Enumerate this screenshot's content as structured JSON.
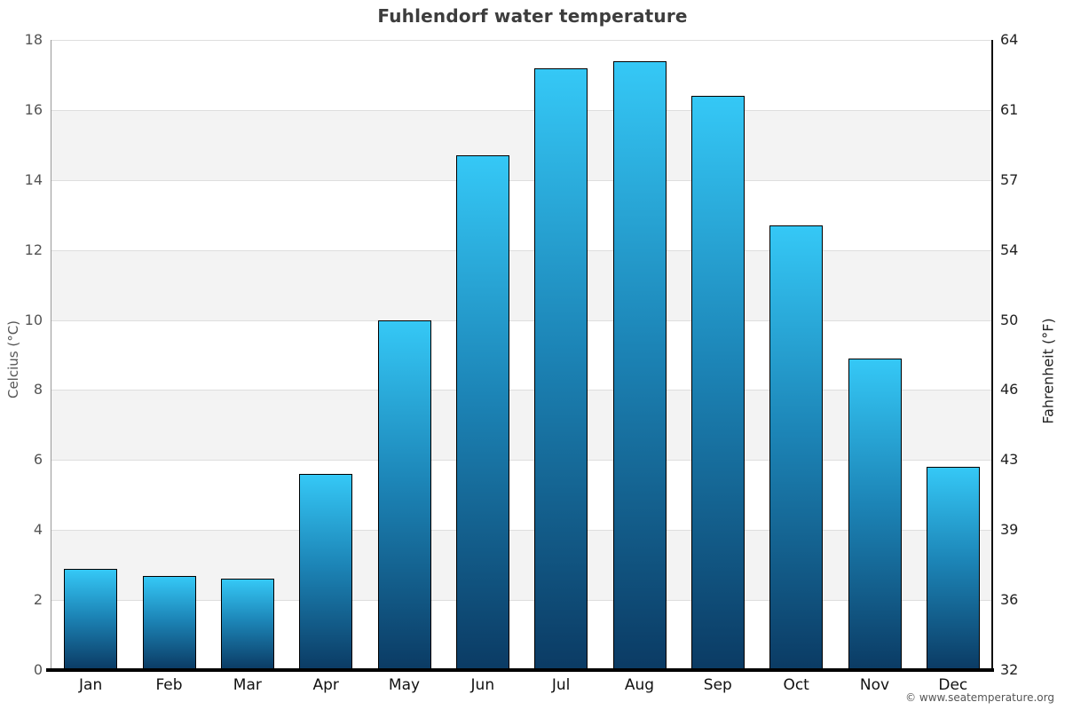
{
  "chart_data": {
    "type": "bar",
    "title": "Fuhlendorf water temperature",
    "categories": [
      "Jan",
      "Feb",
      "Mar",
      "Apr",
      "May",
      "Jun",
      "Jul",
      "Aug",
      "Sep",
      "Oct",
      "Nov",
      "Dec"
    ],
    "values": [
      2.9,
      2.7,
      2.6,
      5.6,
      10.0,
      14.7,
      17.2,
      17.4,
      16.4,
      12.7,
      8.9,
      5.8
    ],
    "ylabel_left": "Celcius (°C)",
    "ylabel_right": "Fahrenheit (°F)",
    "yticks_left": [
      "0",
      "2",
      "4",
      "6",
      "8",
      "10",
      "12",
      "14",
      "16",
      "18"
    ],
    "yticks_right": [
      "32",
      "36",
      "39",
      "43",
      "46",
      "50",
      "54",
      "57",
      "61",
      "64"
    ],
    "ylim": [
      0,
      18
    ],
    "legend": "none",
    "grid": "horizontal gridlines every 2°C with alternating light-gray bands",
    "colors": {
      "bar_gradient_top": "#35c8f6",
      "bar_gradient_mid": "#1c84b6",
      "bar_gradient_bottom": "#0b3b64",
      "bar_border": "#000000",
      "band_fill": "#f3f3f3",
      "gridline": "#dedede",
      "left_axis_line": "#999999",
      "right_axis_line": "#111111",
      "bottom_axis_line": "#000000",
      "title_text": "#3d3d3d"
    }
  },
  "footer": {
    "copyright": "© www.seatemperature.org"
  }
}
